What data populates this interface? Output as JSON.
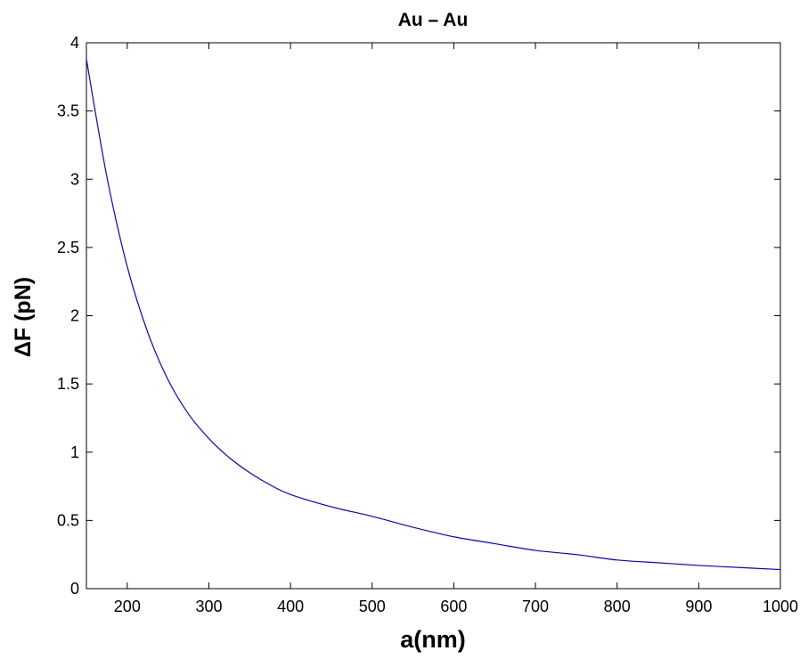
{
  "chart_data": {
    "type": "line",
    "title": "Au – Au",
    "xlabel": "a(nm)",
    "ylabel": "ΔF (pN)",
    "xlim": [
      150,
      1000
    ],
    "ylim": [
      0,
      4
    ],
    "grid": false,
    "legend": "none",
    "xticks": [
      200,
      300,
      400,
      500,
      600,
      700,
      800,
      900,
      1000
    ],
    "xtick_labels": [
      "200",
      "300",
      "400",
      "500",
      "600",
      "700",
      "800",
      "900",
      "1000"
    ],
    "yticks": [
      0,
      0.5,
      1,
      1.5,
      2,
      2.5,
      3,
      3.5,
      4
    ],
    "ytick_labels": [
      "0",
      "0.5",
      "1",
      "1.5",
      "2",
      "2.5",
      "3",
      "3.5",
      "4"
    ],
    "series": [
      {
        "color": "#0000ff",
        "x": [
          150,
          175,
          200,
          225,
          250,
          275,
          300,
          325,
          350,
          375,
          400,
          450,
          500,
          550,
          600,
          650,
          700,
          750,
          800,
          850,
          900,
          950,
          1000
        ],
        "y": [
          3.88,
          3.02,
          2.36,
          1.88,
          1.53,
          1.28,
          1.1,
          0.96,
          0.85,
          0.76,
          0.69,
          0.6,
          0.53,
          0.45,
          0.38,
          0.33,
          0.28,
          0.25,
          0.21,
          0.19,
          0.17,
          0.155,
          0.14
        ]
      }
    ]
  }
}
